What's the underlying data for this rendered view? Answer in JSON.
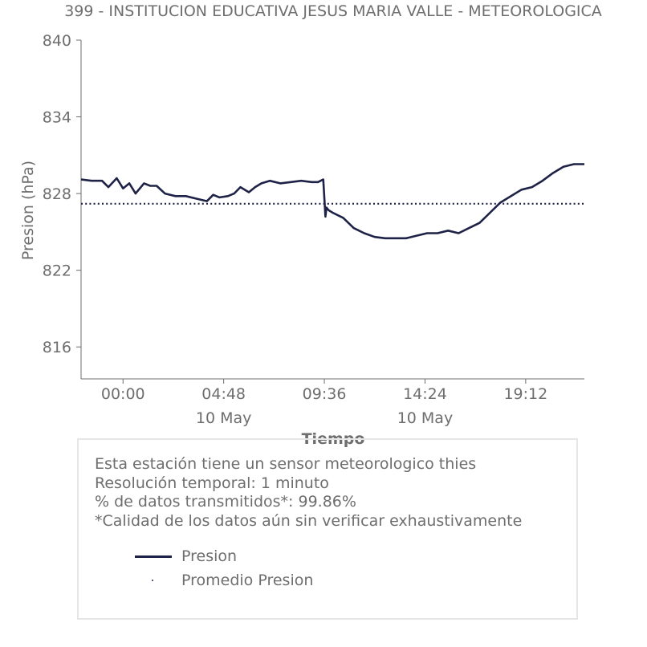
{
  "title": "399 - INSTITUCION EDUCATIVA JESUS MARIA VALLE - METEOROLOGICA",
  "info": {
    "line1": "Esta estación tiene un sensor meteorologico thies",
    "line2": "Resolución temporal: 1 minuto",
    "line3": "% de datos transmitidos*: 99.86%",
    "line4": "*Calidad de los datos aún sin verificar exhaustivamente"
  },
  "legend": {
    "line_label": "Presion",
    "mean_label": "Promedio Presion"
  },
  "colors": {
    "series": "#1f2247",
    "axis_text": "#6e6e6e"
  },
  "chart_data": {
    "type": "line",
    "ylabel": "Presion (hPa)",
    "xlabel": "Tiempo",
    "ylim": [
      813.5,
      840
    ],
    "yticks": [
      "816",
      "822",
      "828",
      "834",
      "840"
    ],
    "ytick_values": [
      816,
      822,
      828,
      834,
      840
    ],
    "xtick_values_hours": [
      0,
      4.8,
      9.6,
      14.4,
      19.2
    ],
    "xtick_labels": [
      "00:00",
      "04:48",
      "09:36",
      "14:24",
      "19:12"
    ],
    "xtick_sublabels": [
      "",
      "10 May",
      "",
      "10 May",
      ""
    ],
    "xlim_hours": [
      -2.0,
      22.0
    ],
    "grid": false,
    "legend_position": "bottom",
    "series": [
      {
        "name": "Presion",
        "style": "solid",
        "x_hours": [
          -2.0,
          -1.5,
          -1.0,
          -0.7,
          -0.3,
          0.0,
          0.3,
          0.6,
          1.0,
          1.3,
          1.6,
          2.0,
          2.5,
          3.0,
          3.5,
          4.0,
          4.3,
          4.6,
          5.0,
          5.3,
          5.6,
          6.0,
          6.3,
          6.6,
          7.0,
          7.5,
          8.0,
          8.5,
          9.0,
          9.3,
          9.55,
          9.6,
          9.65,
          9.7,
          9.8,
          10.0,
          10.5,
          11.0,
          11.5,
          12.0,
          12.5,
          13.0,
          13.5,
          14.0,
          14.5,
          15.0,
          15.5,
          16.0,
          16.5,
          17.0,
          17.5,
          18.0,
          18.5,
          19.0,
          19.5,
          20.0,
          20.5,
          21.0,
          21.5,
          22.0
        ],
        "y": [
          829.1,
          829.0,
          829.0,
          828.5,
          829.2,
          828.4,
          828.8,
          828.0,
          828.8,
          828.6,
          828.6,
          828.0,
          827.8,
          827.8,
          827.6,
          827.4,
          827.9,
          827.7,
          827.8,
          828.0,
          828.5,
          828.1,
          828.5,
          828.8,
          829.0,
          828.8,
          828.9,
          829.0,
          828.9,
          828.9,
          829.1,
          827.6,
          826.2,
          826.9,
          826.7,
          826.5,
          826.1,
          825.3,
          824.9,
          824.6,
          824.5,
          824.5,
          824.5,
          824.7,
          824.9,
          824.9,
          825.1,
          824.9,
          825.3,
          825.7,
          826.5,
          827.3,
          827.8,
          828.3,
          828.5,
          829.0,
          829.6,
          830.1,
          830.3,
          830.3
        ]
      },
      {
        "name": "Promedio Presion",
        "style": "dotted",
        "x_hours": [
          -2.0,
          22.0
        ],
        "y": [
          827.2,
          827.2
        ]
      }
    ]
  }
}
